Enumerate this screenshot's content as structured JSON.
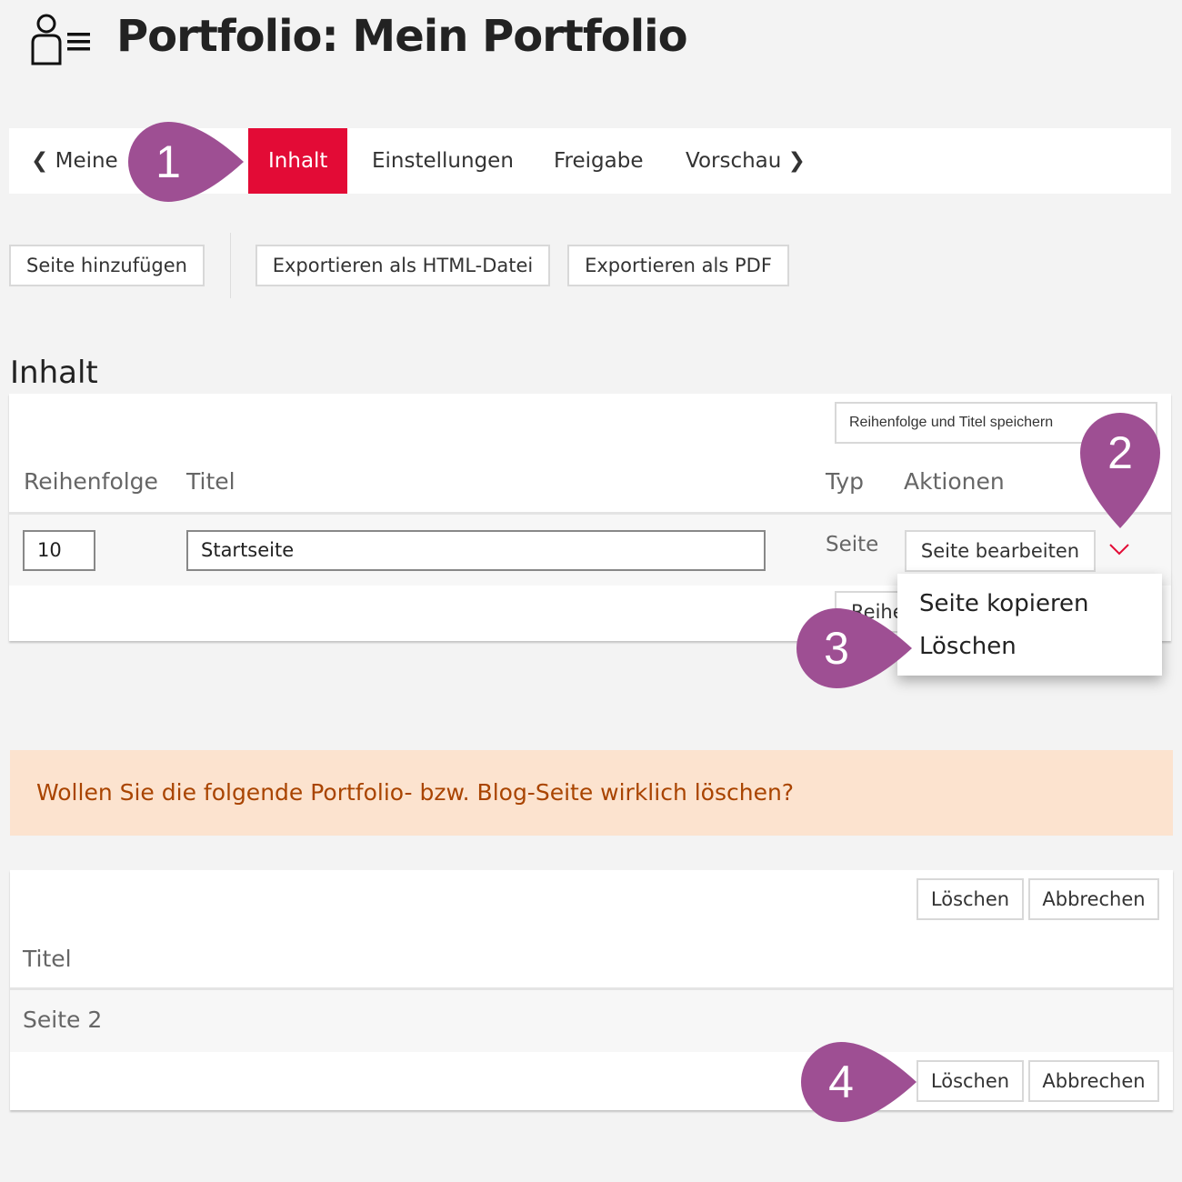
{
  "header": {
    "title": "Portfolio: Mein Portfolio",
    "icon": "portfolio-user-icon"
  },
  "nav": {
    "back": "Meine",
    "tabs": [
      {
        "label": "Inhalt",
        "active": true
      },
      {
        "label": "Einstellungen"
      },
      {
        "label": "Freigabe"
      },
      {
        "label": "Vorschau"
      }
    ]
  },
  "toolbar": {
    "add_page": "Seite hinzufügen",
    "export_html": "Exportieren als HTML-Datei",
    "export_pdf": "Exportieren als PDF"
  },
  "content": {
    "heading": "Inhalt",
    "save_order": "Reihenfolge und Titel speichern",
    "save_order_visible_top": "Reihenfolge und Titel speic",
    "save_order_visible_bottom": "Reihe",
    "columns": [
      "Reihenfolge",
      "Titel",
      "Typ",
      "Aktionen"
    ],
    "rows": [
      {
        "order": "10",
        "title": "Startseite",
        "type": "Seite",
        "action": "Seite bearbeiten"
      }
    ],
    "dropdown": [
      "Seite kopieren",
      "Löschen"
    ]
  },
  "confirm": {
    "message": "Wollen Sie die folgende Portfolio- bzw. Blog-Seite wirklich löschen?",
    "delete": "Löschen",
    "cancel": "Abbrechen",
    "column": "Titel",
    "rows": [
      "Seite 2"
    ]
  },
  "markers": [
    "1",
    "2",
    "3",
    "4"
  ],
  "colors": {
    "accent": "#e30b36",
    "marker": "#9e4f93",
    "alert_bg": "#fce3cf",
    "alert_text": "#a94400"
  }
}
